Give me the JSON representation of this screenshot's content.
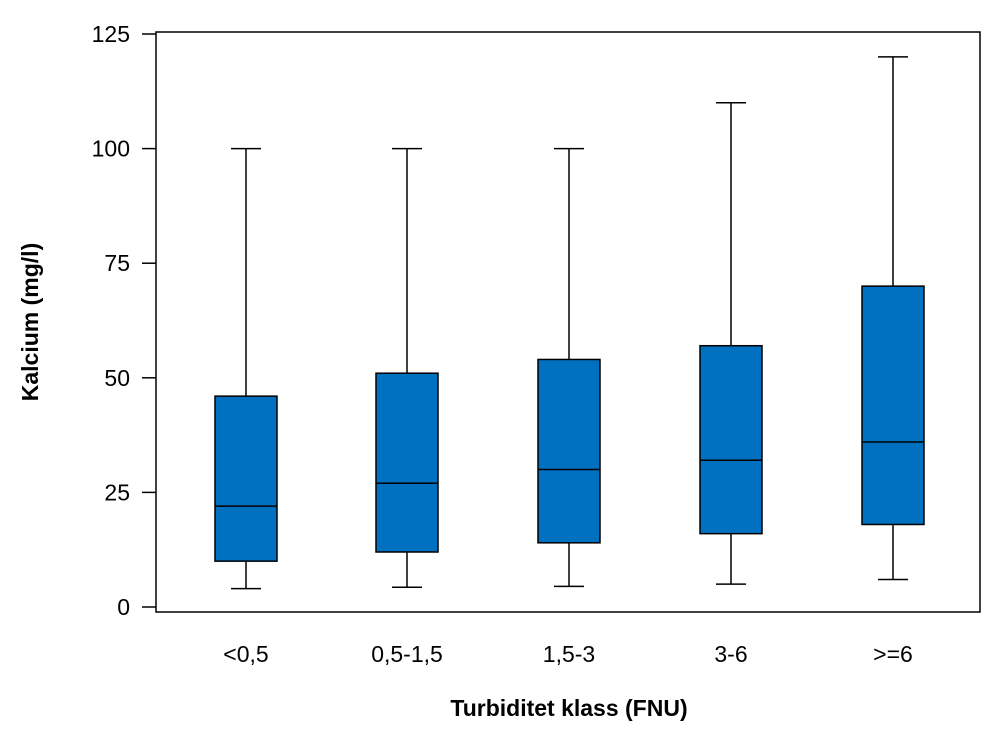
{
  "chart_data": {
    "type": "boxplot",
    "title": "",
    "xlabel": "Turbiditet klass (FNU)",
    "ylabel": "Kalcium (mg/l)",
    "ylim": [
      0,
      125
    ],
    "yticks": [
      "0",
      "25",
      "50",
      "75",
      "100",
      "125"
    ],
    "grid": false,
    "legend": "none",
    "colors": {
      "box_fill": "#0070C0",
      "stroke": "#000000"
    },
    "categories": [
      "<0,5",
      "0,5-1,5",
      "1,5-3",
      "3-6",
      ">=6"
    ],
    "boxes": [
      {
        "category": "<0,5",
        "whisker_low": 4,
        "q1": 10,
        "median": 22,
        "q3": 46,
        "whisker_high": 100
      },
      {
        "category": "0,5-1,5",
        "whisker_low": 4.3,
        "q1": 12,
        "median": 27,
        "q3": 51,
        "whisker_high": 100
      },
      {
        "category": "1,5-3",
        "whisker_low": 4.5,
        "q1": 14,
        "median": 30,
        "q3": 54,
        "whisker_high": 100
      },
      {
        "category": "3-6",
        "whisker_low": 5,
        "q1": 16,
        "median": 32,
        "q3": 57,
        "whisker_high": 110
      },
      {
        "category": ">=6",
        "whisker_low": 6,
        "q1": 18,
        "median": 36,
        "q3": 70,
        "whisker_high": 120
      }
    ]
  }
}
